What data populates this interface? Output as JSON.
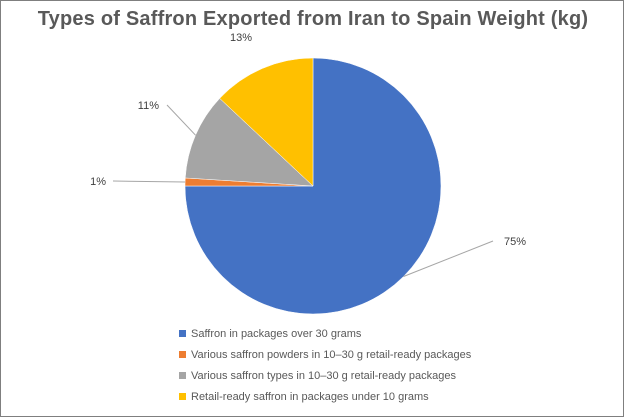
{
  "chart_data": {
    "type": "pie",
    "title": "Types of Saffron Exported from Iran to Spain Weight (kg)",
    "series": [
      {
        "name": "Saffron in packages over 30 grams",
        "value": 75,
        "label": "75%",
        "color": "#4472C4"
      },
      {
        "name": "Various saffron powders in 10–30 g retail-ready packages",
        "value": 1,
        "label": "1%",
        "color": "#ED7D31"
      },
      {
        "name": "Various saffron types in 10–30 g retail-ready packages",
        "value": 11,
        "label": "11%",
        "color": "#A5A5A5"
      },
      {
        "name": "Retail-ready saffron in packages under 10 grams",
        "value": 13,
        "label": "13%",
        "color": "#FFC000"
      }
    ],
    "legend_position": "bottom",
    "data_labels": "outside-with-leader-lines"
  }
}
